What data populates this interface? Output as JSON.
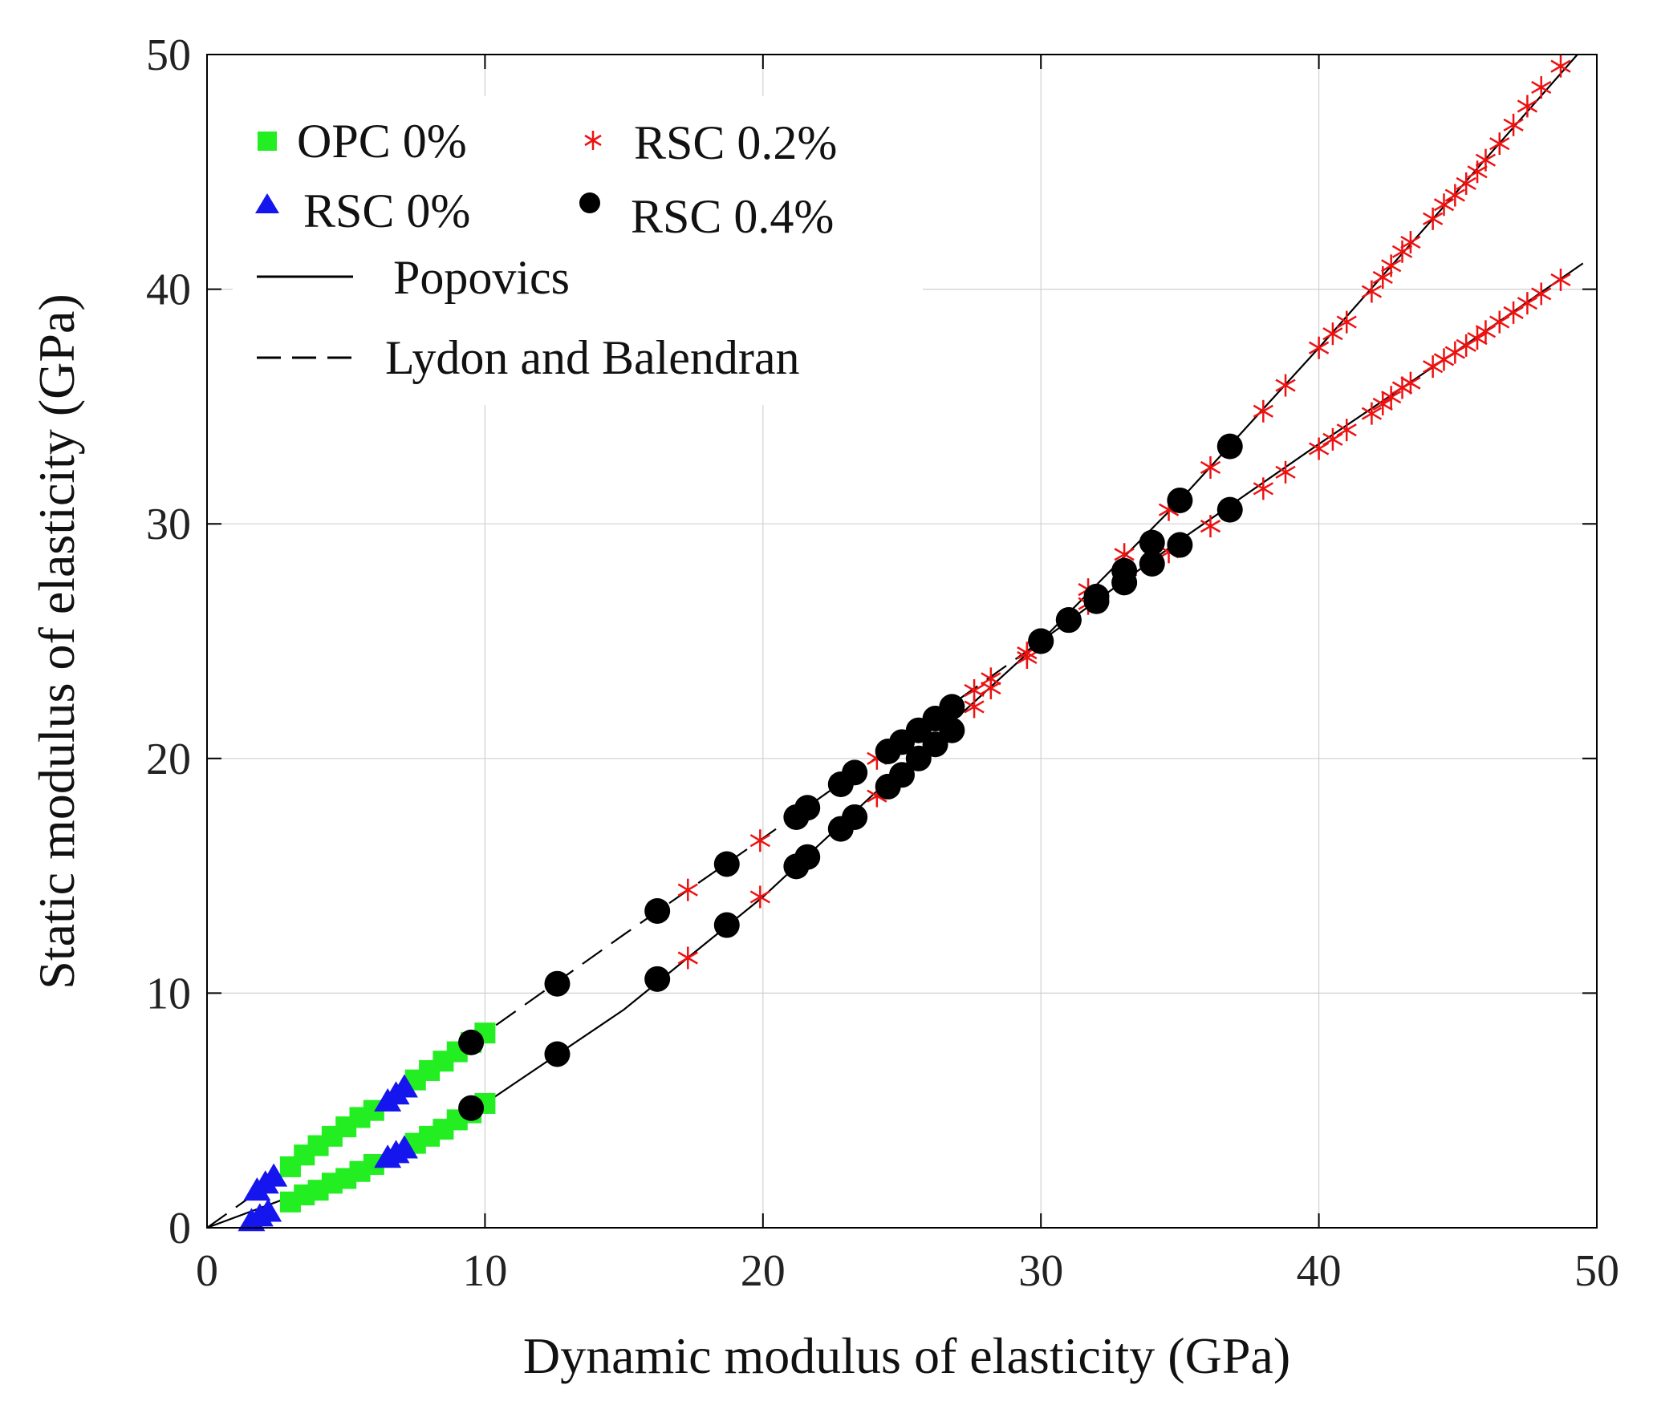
{
  "chart_data": {
    "type": "scatter",
    "title": "",
    "xlabel": "Dynamic modulus of elasticity (GPa)",
    "ylabel": "Static modulus of elasticity (GPa)",
    "xlim": [
      0,
      50
    ],
    "ylim": [
      0,
      50
    ],
    "xticks": [
      0,
      10,
      20,
      30,
      40,
      50
    ],
    "yticks": [
      0,
      10,
      20,
      30,
      40,
      50
    ],
    "grid": true,
    "legend_position": "top-left",
    "series": [
      {
        "name": "OPC 0%",
        "marker": "square",
        "color": "#22ee22",
        "points": [
          [
            3.0,
            2.6
          ],
          [
            3.5,
            3.1
          ],
          [
            4.0,
            3.5
          ],
          [
            4.5,
            3.9
          ],
          [
            5.0,
            4.3
          ],
          [
            5.5,
            4.7
          ],
          [
            6.0,
            5.0
          ],
          [
            7.5,
            6.3
          ],
          [
            8.0,
            6.7
          ],
          [
            8.5,
            7.1
          ],
          [
            9.0,
            7.5
          ],
          [
            9.5,
            7.9
          ],
          [
            10.0,
            8.3
          ],
          [
            3.0,
            1.1
          ],
          [
            3.5,
            1.4
          ],
          [
            4.0,
            1.6
          ],
          [
            4.5,
            1.9
          ],
          [
            5.0,
            2.1
          ],
          [
            5.5,
            2.4
          ],
          [
            6.0,
            2.7
          ],
          [
            7.5,
            3.6
          ],
          [
            8.0,
            3.9
          ],
          [
            8.5,
            4.2
          ],
          [
            9.0,
            4.6
          ],
          [
            9.5,
            4.9
          ],
          [
            10.0,
            5.3
          ]
        ]
      },
      {
        "name": "RSC 0%",
        "marker": "triangle",
        "color": "#1515ee",
        "points": [
          [
            1.8,
            1.6
          ],
          [
            2.1,
            1.9
          ],
          [
            2.4,
            2.2
          ],
          [
            6.5,
            5.4
          ],
          [
            6.8,
            5.7
          ],
          [
            7.1,
            6.0
          ],
          [
            1.6,
            0.3
          ],
          [
            1.9,
            0.5
          ],
          [
            2.2,
            0.7
          ],
          [
            6.5,
            3.0
          ],
          [
            6.8,
            3.2
          ],
          [
            7.1,
            3.4
          ]
        ]
      },
      {
        "name": "RSC 0.2%",
        "marker": "asterisk",
        "color": "#ee1111",
        "points": [
          [
            17.3,
            14.4
          ],
          [
            19.9,
            16.5
          ],
          [
            24.1,
            20.0
          ],
          [
            27.6,
            22.9
          ],
          [
            28.2,
            23.4
          ],
          [
            29.5,
            24.5
          ],
          [
            31.7,
            27.2
          ],
          [
            33.0,
            28.7
          ],
          [
            34.6,
            30.6
          ],
          [
            36.1,
            32.4
          ],
          [
            38.0,
            34.8
          ],
          [
            38.8,
            35.9
          ],
          [
            40.0,
            37.5
          ],
          [
            40.5,
            38.1
          ],
          [
            41.0,
            38.6
          ],
          [
            41.9,
            39.9
          ],
          [
            42.3,
            40.5
          ],
          [
            42.6,
            41.0
          ],
          [
            43.0,
            41.6
          ],
          [
            43.3,
            42.0
          ],
          [
            44.1,
            43.0
          ],
          [
            44.5,
            43.6
          ],
          [
            44.9,
            44.0
          ],
          [
            45.3,
            44.5
          ],
          [
            45.7,
            45.0
          ],
          [
            46.0,
            45.5
          ],
          [
            46.5,
            46.2
          ],
          [
            47.0,
            47.0
          ],
          [
            47.5,
            47.8
          ],
          [
            48.0,
            48.6
          ],
          [
            48.7,
            49.5
          ],
          [
            17.3,
            11.5
          ],
          [
            19.9,
            14.1
          ],
          [
            24.1,
            18.4
          ],
          [
            27.6,
            22.2
          ],
          [
            28.2,
            23.0
          ],
          [
            29.5,
            24.3
          ],
          [
            31.7,
            26.6
          ],
          [
            33.1,
            27.6
          ],
          [
            34.6,
            28.8
          ],
          [
            36.1,
            29.9
          ],
          [
            38.0,
            31.5
          ],
          [
            38.8,
            32.2
          ],
          [
            40.0,
            33.2
          ],
          [
            40.5,
            33.6
          ],
          [
            41.0,
            34.0
          ],
          [
            41.9,
            34.7
          ],
          [
            42.3,
            35.1
          ],
          [
            42.6,
            35.4
          ],
          [
            43.0,
            35.8
          ],
          [
            43.3,
            36.0
          ],
          [
            44.1,
            36.7
          ],
          [
            44.5,
            37.0
          ],
          [
            44.9,
            37.3
          ],
          [
            45.3,
            37.6
          ],
          [
            45.7,
            37.9
          ],
          [
            46.0,
            38.2
          ],
          [
            46.5,
            38.6
          ],
          [
            47.0,
            39.0
          ],
          [
            47.5,
            39.4
          ],
          [
            48.0,
            39.8
          ],
          [
            48.7,
            40.4
          ]
        ]
      },
      {
        "name": "RSC 0.4%",
        "marker": "circle",
        "color": "#000000",
        "points": [
          [
            9.5,
            7.9
          ],
          [
            12.6,
            10.4
          ],
          [
            16.2,
            13.5
          ],
          [
            18.7,
            15.5
          ],
          [
            21.2,
            17.5
          ],
          [
            21.6,
            17.9
          ],
          [
            22.8,
            18.9
          ],
          [
            23.3,
            19.4
          ],
          [
            24.5,
            20.3
          ],
          [
            25.0,
            20.7
          ],
          [
            25.6,
            21.2
          ],
          [
            26.2,
            21.7
          ],
          [
            26.8,
            22.2
          ],
          [
            30.0,
            25.0
          ],
          [
            31.0,
            25.9
          ],
          [
            32.0,
            26.9
          ],
          [
            33.0,
            28.0
          ],
          [
            34.0,
            29.2
          ],
          [
            35.0,
            31.0
          ],
          [
            36.8,
            33.3
          ],
          [
            9.5,
            5.1
          ],
          [
            12.6,
            7.4
          ],
          [
            16.2,
            10.6
          ],
          [
            18.7,
            12.9
          ],
          [
            21.2,
            15.4
          ],
          [
            21.6,
            15.8
          ],
          [
            22.8,
            17.0
          ],
          [
            23.3,
            17.5
          ],
          [
            24.5,
            18.8
          ],
          [
            25.0,
            19.3
          ],
          [
            25.6,
            20.0
          ],
          [
            26.2,
            20.6
          ],
          [
            26.8,
            21.2
          ],
          [
            30.0,
            25.0
          ],
          [
            31.0,
            25.9
          ],
          [
            32.0,
            26.7
          ],
          [
            33.0,
            27.5
          ],
          [
            34.0,
            28.3
          ],
          [
            35.0,
            29.1
          ],
          [
            36.8,
            30.6
          ]
        ]
      }
    ],
    "lines": [
      {
        "name": "Popovics",
        "style": "solid",
        "points": [
          [
            0,
            0
          ],
          [
            5,
            2.2
          ],
          [
            10,
            5.3
          ],
          [
            15,
            9.3
          ],
          [
            20,
            14.1
          ],
          [
            25,
            19.6
          ],
          [
            30,
            25.0
          ],
          [
            35,
            29.3
          ],
          [
            40,
            33.4
          ],
          [
            45,
            37.4
          ],
          [
            49.5,
            41.1
          ]
        ]
      },
      {
        "name": "Popovics",
        "style": "solid",
        "points": [
          [
            30,
            25.0
          ],
          [
            35,
            31.0
          ],
          [
            40,
            37.5
          ],
          [
            45,
            44.2
          ],
          [
            49.3,
            50.0
          ]
        ]
      },
      {
        "name": "Lydon and Balendran",
        "style": "dashed",
        "points": [
          [
            0,
            0
          ],
          [
            5,
            4.2
          ],
          [
            10,
            8.3
          ],
          [
            15,
            12.5
          ],
          [
            20,
            16.6
          ],
          [
            25,
            20.8
          ],
          [
            30,
            25.0
          ]
        ]
      }
    ]
  },
  "legend": {
    "items": [
      {
        "label": "OPC 0%",
        "marker": "square",
        "color": "#22ee22"
      },
      {
        "label": "RSC 0%",
        "marker": "triangle",
        "color": "#1515ee"
      },
      {
        "label": "RSC 0.2%",
        "marker": "asterisk",
        "color": "#ee1111"
      },
      {
        "label": "RSC 0.4%",
        "marker": "circle",
        "color": "#000000"
      },
      {
        "label": "Popovics",
        "marker": "line-solid",
        "color": "#000000"
      },
      {
        "label": "Lydon and Balendran",
        "marker": "line-dashed",
        "color": "#000000"
      }
    ]
  }
}
